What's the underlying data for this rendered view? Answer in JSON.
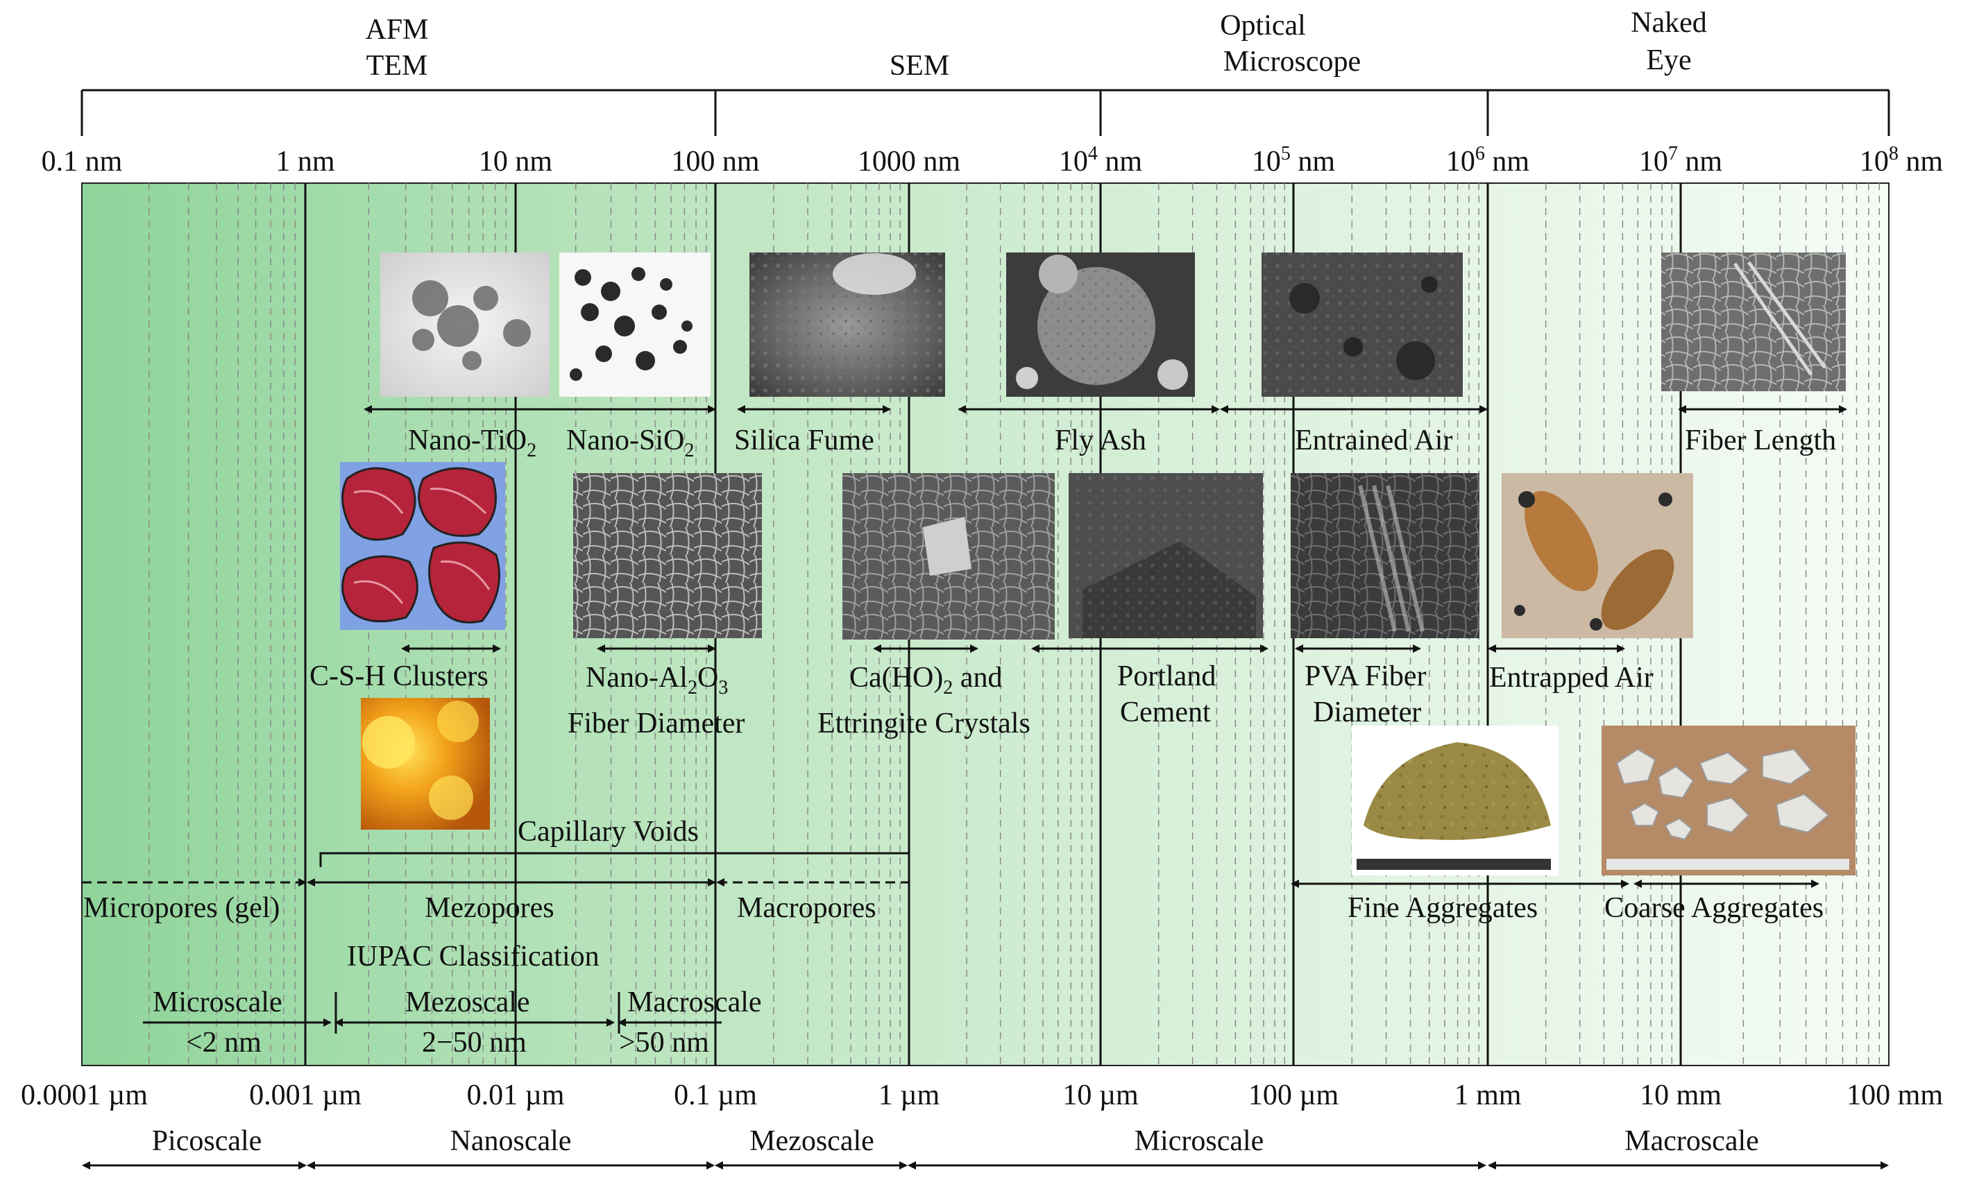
{
  "instruments": {
    "afm": "AFM",
    "tem": "TEM",
    "sem": "SEM",
    "optical_1": "Optical",
    "optical_2": "Microscope",
    "naked_1": "Naked",
    "naked_2": "Eye"
  },
  "top_ticks": [
    {
      "label": "0.1 nm"
    },
    {
      "label": "1 nm"
    },
    {
      "label": "10 nm"
    },
    {
      "label": "100 nm"
    },
    {
      "label": "1000 nm"
    },
    {
      "base": "10",
      "exp": "4",
      "unit": " nm"
    },
    {
      "base": "10",
      "exp": "5",
      "unit": " nm"
    },
    {
      "base": "10",
      "exp": "6",
      "unit": " nm"
    },
    {
      "base": "10",
      "exp": "7",
      "unit": " nm"
    },
    {
      "base": "10",
      "exp": "8",
      "unit": " nm"
    }
  ],
  "bottom_ticks": [
    "0.0001 µm",
    "0.001 µm",
    "0.01 µm",
    "0.1 µm",
    "1 µm",
    "10 µm",
    "100 µm",
    "1 mm",
    "10 mm",
    "100 mm"
  ],
  "scales": [
    "Picoscale",
    "Nanoscale",
    "Mezoscale",
    "Microscale",
    "Macroscale"
  ],
  "materials": {
    "nano_tio2": {
      "base": "Nano-TiO",
      "sub": "2"
    },
    "nano_sio2": {
      "base": "Nano-SiO",
      "sub": "2"
    },
    "silica_fume": "Silica Fume",
    "fly_ash": "Fly Ash",
    "entrained_air": "Entrained Air",
    "fiber_length": "Fiber Length",
    "csh_clusters": "C-S-H Clusters",
    "nano_al2o3": {
      "pre": "Nano-Al",
      "sub1": "2",
      "mid": "O",
      "sub2": "3",
      "line2": "Fiber Diameter"
    },
    "caho2": {
      "pre": "Ca(HO)",
      "sub": "2",
      "post": " and",
      "line2": "Ettringite Crystals"
    },
    "portland": {
      "line1": "Portland",
      "line2": "Cement"
    },
    "pva": {
      "line1": "PVA Fiber",
      "line2": "Diameter"
    },
    "entrapped_air": "Entrapped Air",
    "capillary_voids": "Capillary Voids",
    "fine_agg": "Fine Aggregates",
    "coarse_agg": "Coarse Aggregates"
  },
  "pores": {
    "micropores": "Micropores (gel)",
    "mezopores": "Mezopores",
    "macropores": "Macropores",
    "iupac": "IUPAC Classification",
    "microscale": "Microscale",
    "micro_range": "<2 nm",
    "mezoscale": "Mezoscale",
    "mezo_range": "2−50 nm",
    "macroscale": "Macroscale",
    "macro_range": ">50 nm"
  },
  "icons": [
    "tem-nanoparticle-image",
    "sem-image",
    "afm-height-map-image",
    "csh-cluster-model-image",
    "fine-aggregate-photo",
    "coarse-aggregate-photo",
    "concrete-section-photo"
  ]
}
